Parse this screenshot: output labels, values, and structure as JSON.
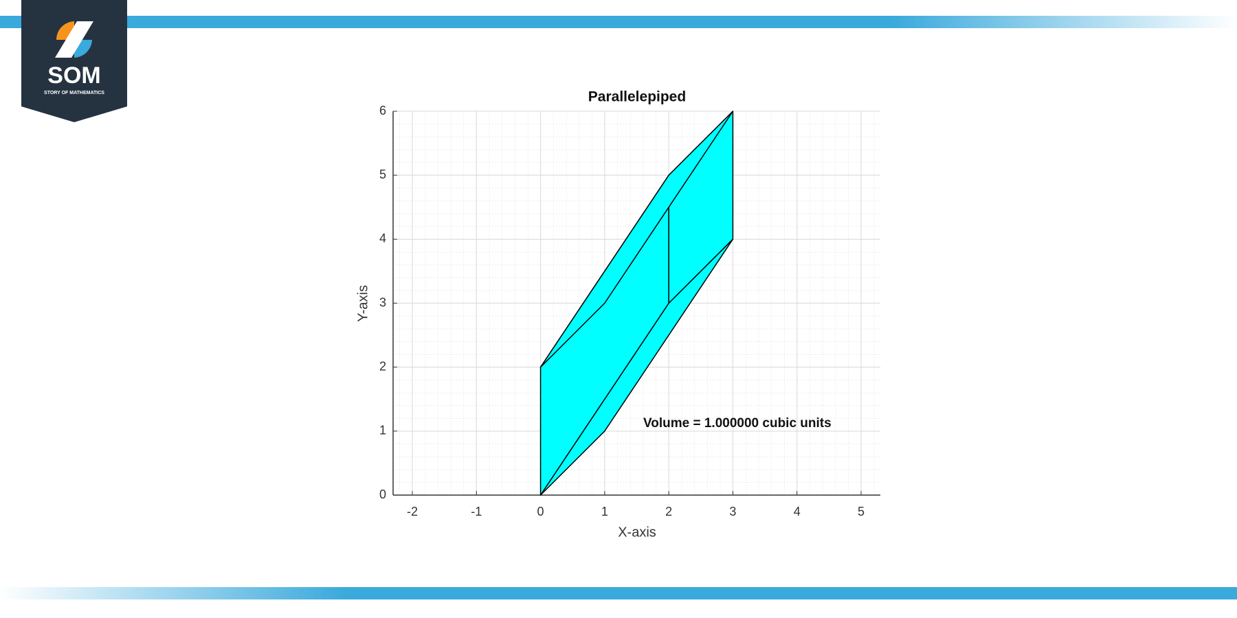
{
  "logo": {
    "name": "SOM",
    "tagline": "STORY OF MATHEMATICS"
  },
  "chart_data": {
    "type": "polygon",
    "title": "Parallelepiped",
    "x_label": "X-axis",
    "y_label": "Y-axis",
    "color": "#00ffff",
    "edge_color": "#000000",
    "faces": [
      {
        "x": [
          0,
          1,
          3,
          2
        ],
        "y": [
          0,
          1,
          4,
          3
        ]
      },
      {
        "x": [
          0,
          0,
          2,
          2
        ],
        "y": [
          0,
          2,
          5,
          3
        ]
      },
      {
        "x": [
          2,
          2,
          3,
          3
        ],
        "y": [
          3,
          5,
          6,
          4
        ]
      },
      {
        "x": [
          0,
          2,
          3,
          1
        ],
        "y": [
          2,
          5,
          6,
          3
        ]
      }
    ],
    "annotation": "Volume = 1.000000 cubic units",
    "xlim": [
      -2.3,
      5.3
    ],
    "ylim": [
      0,
      6
    ],
    "xticks": [
      -2,
      -1,
      0,
      1,
      2,
      3,
      4,
      5
    ],
    "yticks": [
      0,
      1,
      2,
      3,
      4,
      5,
      6
    ],
    "grid": true,
    "minor_grid": true
  }
}
